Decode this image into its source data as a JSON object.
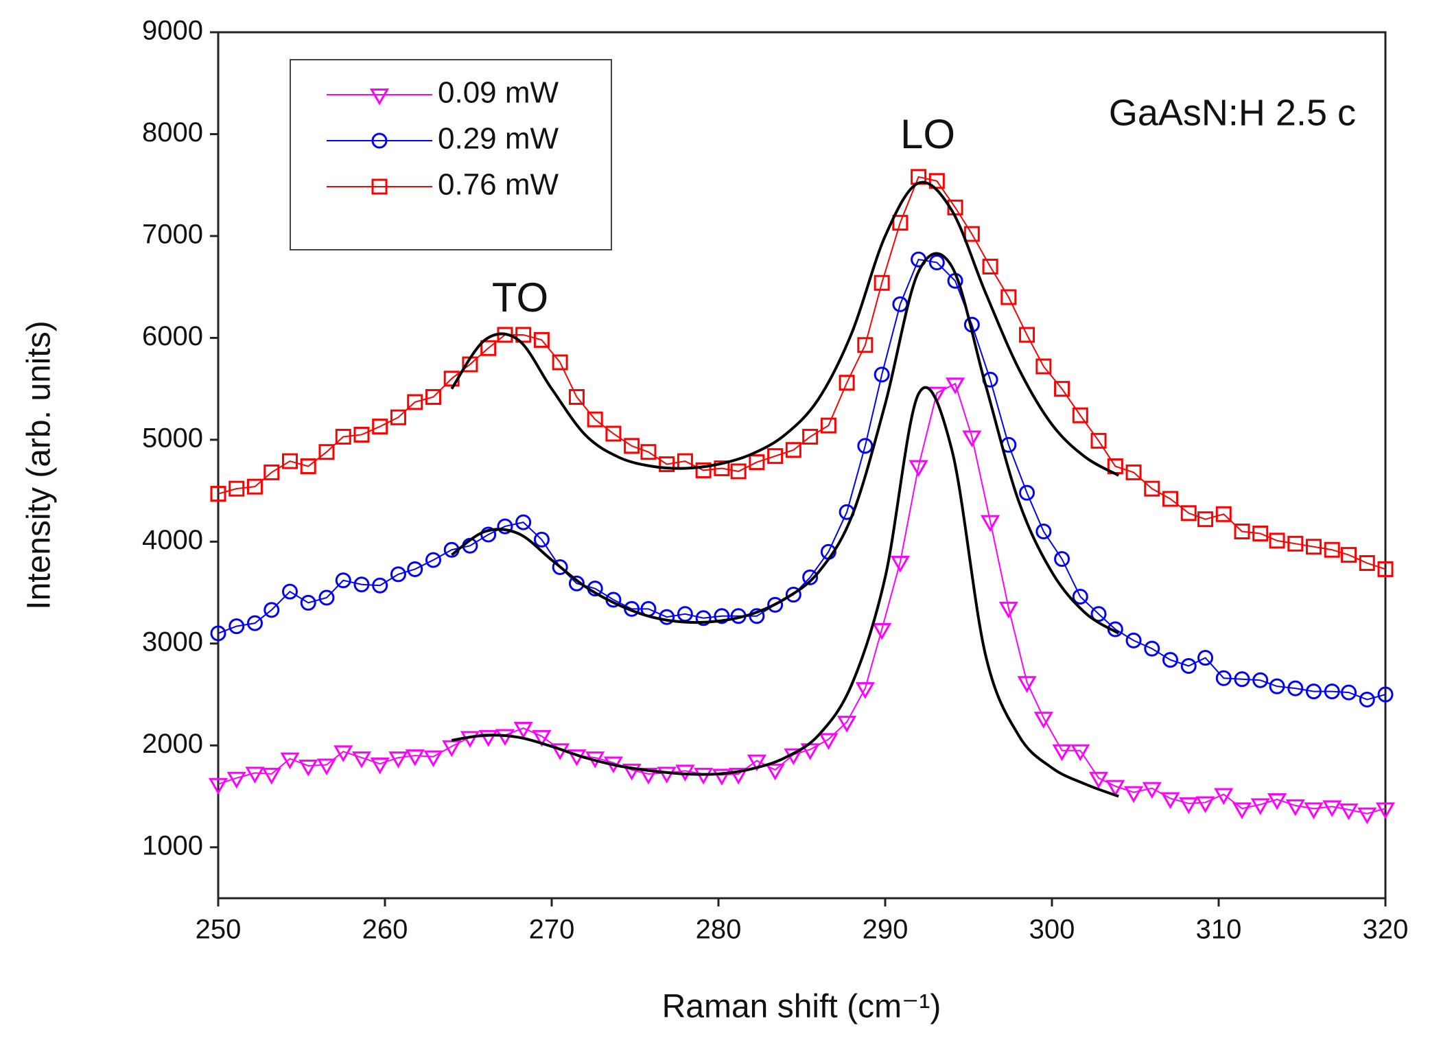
{
  "chart_data": {
    "type": "line",
    "xlabel": "Raman shift (cm⁻¹)",
    "ylabel": "Intensity (arb. units)",
    "annotations": [
      "TO",
      "LO",
      "GaAsN:H 2.5 c"
    ],
    "xlim": [
      250,
      320
    ],
    "ylim": [
      500,
      9000
    ],
    "xticks": [
      250,
      260,
      270,
      280,
      290,
      300,
      310,
      320
    ],
    "yticks": [
      1000,
      2000,
      3000,
      4000,
      5000,
      6000,
      7000,
      8000,
      9000
    ],
    "legend": "upper left",
    "x": [
      250.0,
      251.1,
      252.2,
      253.2,
      254.3,
      255.4,
      256.5,
      257.5,
      258.6,
      259.7,
      260.8,
      261.8,
      262.9,
      264.0,
      265.1,
      266.2,
      267.2,
      268.3,
      269.4,
      270.5,
      271.5,
      272.6,
      273.7,
      274.8,
      275.8,
      276.9,
      278.0,
      279.1,
      280.2,
      281.2,
      282.3,
      283.4,
      284.5,
      285.5,
      286.6,
      287.7,
      288.8,
      289.8,
      290.9,
      292.0,
      293.1,
      294.2,
      295.2,
      296.3,
      297.4,
      298.5,
      299.5,
      300.6,
      301.7,
      302.8,
      303.8,
      304.9,
      306.0,
      307.1,
      308.2,
      309.2,
      310.3,
      311.4,
      312.5,
      313.5,
      314.6,
      315.7,
      316.8,
      317.8,
      318.9,
      320.0
    ],
    "series": [
      {
        "name": "0.09 mW",
        "color": "#ff00ff",
        "marker": "triangle-down",
        "values": [
          1620,
          1680,
          1730,
          1720,
          1870,
          1800,
          1810,
          1940,
          1880,
          1820,
          1880,
          1900,
          1890,
          1990,
          2080,
          2090,
          2100,
          2170,
          2090,
          1960,
          1900,
          1880,
          1830,
          1760,
          1720,
          1730,
          1750,
          1720,
          1710,
          1720,
          1850,
          1760,
          1910,
          1960,
          2060,
          2230,
          2560,
          3140,
          3800,
          4740,
          5460,
          5550,
          5030,
          4200,
          3350,
          2620,
          2270,
          1950,
          1950,
          1680,
          1600,
          1540,
          1580,
          1480,
          1430,
          1440,
          1520,
          1380,
          1420,
          1470,
          1410,
          1380,
          1400,
          1370,
          1330,
          1380
        ]
      },
      {
        "name": "0.29 mW",
        "color": "#0000ff",
        "marker": "circle",
        "values": [
          3100,
          3170,
          3200,
          3330,
          3510,
          3400,
          3450,
          3620,
          3580,
          3570,
          3680,
          3730,
          3820,
          3920,
          3960,
          4070,
          4150,
          4190,
          4020,
          3750,
          3590,
          3540,
          3430,
          3340,
          3340,
          3260,
          3290,
          3250,
          3270,
          3270,
          3270,
          3380,
          3480,
          3650,
          3900,
          4290,
          4940,
          5640,
          6330,
          6770,
          6740,
          6560,
          6130,
          5590,
          4950,
          4480,
          4100,
          3830,
          3460,
          3290,
          3140,
          3030,
          2950,
          2840,
          2780,
          2860,
          2660,
          2650,
          2640,
          2580,
          2560,
          2530,
          2530,
          2520,
          2450,
          2500
        ]
      },
      {
        "name": "0.76 mW",
        "color": "#ff0000",
        "marker": "square",
        "values": [
          4470,
          4520,
          4540,
          4680,
          4790,
          4740,
          4880,
          5030,
          5050,
          5130,
          5220,
          5370,
          5420,
          5600,
          5740,
          5900,
          6030,
          6030,
          5980,
          5760,
          5420,
          5200,
          5060,
          4940,
          4880,
          4760,
          4790,
          4700,
          4720,
          4690,
          4780,
          4840,
          4900,
          5030,
          5140,
          5560,
          5930,
          6540,
          7130,
          7580,
          7540,
          7280,
          7020,
          6700,
          6400,
          6030,
          5720,
          5500,
          5240,
          4990,
          4740,
          4680,
          4520,
          4420,
          4280,
          4220,
          4270,
          4100,
          4080,
          4010,
          3980,
          3950,
          3920,
          3870,
          3790,
          3730
        ]
      }
    ],
    "fits": [
      {
        "color": "#000000",
        "x": [
          264,
          266,
          268,
          270,
          272,
          274,
          276,
          278,
          280,
          282,
          284,
          286,
          288,
          290,
          292,
          294,
          296,
          298,
          300,
          302,
          304
        ],
        "values": [
          2050,
          2100,
          2080,
          1990,
          1880,
          1800,
          1750,
          1720,
          1720,
          1770,
          1880,
          2100,
          2600,
          3650,
          5450,
          4900,
          2900,
          2100,
          1780,
          1620,
          1500
        ]
      },
      {
        "color": "#000000",
        "x": [
          264,
          266,
          268,
          270,
          272,
          274,
          276,
          278,
          280,
          282,
          284,
          286,
          288,
          290,
          292,
          294,
          296,
          298,
          300,
          302,
          304
        ],
        "values": [
          3870,
          4100,
          4080,
          3820,
          3560,
          3380,
          3260,
          3210,
          3220,
          3290,
          3440,
          3700,
          4250,
          5350,
          6650,
          6700,
          5550,
          4400,
          3700,
          3300,
          3100
        ]
      },
      {
        "color": "#000000",
        "x": [
          264,
          266,
          268,
          270,
          272,
          274,
          276,
          278,
          280,
          282,
          284,
          286,
          288,
          290,
          292,
          294,
          296,
          298,
          300,
          302,
          304
        ],
        "values": [
          5500,
          5980,
          5980,
          5500,
          5050,
          4830,
          4740,
          4720,
          4760,
          4860,
          5050,
          5400,
          6050,
          7000,
          7520,
          7250,
          6450,
          5700,
          5150,
          4830,
          4650
        ]
      }
    ]
  }
}
